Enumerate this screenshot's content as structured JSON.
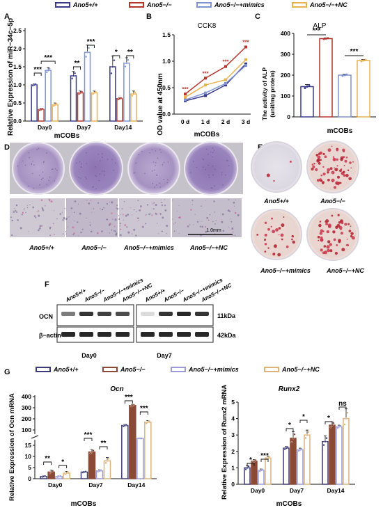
{
  "colors": {
    "wt": "#3a3a8c",
    "ko": "#b5352b",
    "mimics": "#7f93d0",
    "nc": "#e8b24f",
    "g_wt": "#3d3a7a",
    "g_ko": "#8a4a35",
    "g_mimics": "#9a9ad6",
    "g_nc": "#ddb37a"
  },
  "legend_top": [
    "Ano5+/+",
    "Ano5−/−",
    "Ano5−/−+mimics",
    "Ano5−/−+NC"
  ],
  "legend_g": [
    "Ano5+/+",
    "Ano5−/−",
    "Ano5−/−+mimics",
    "Ano5−/−+NC"
  ],
  "panels": {
    "A": {
      "letter": "A",
      "ylabel": "Relative Expression of miR−34c−5p",
      "xlabel": "mCOBs",
      "categories": [
        "Day0",
        "Day7",
        "Day14"
      ],
      "yticks": [
        "0.0",
        "0.5",
        "1.0",
        "1.5",
        "2.0",
        "2.5"
      ],
      "sig": [
        "***",
        "***",
        "**",
        "***",
        "*",
        "**"
      ]
    },
    "B": {
      "letter": "B",
      "title": "CCK8",
      "ylabel": "OD value at 450nm",
      "xlabel": "mCOBs",
      "xticks": [
        "0 d",
        "1 d",
        "2 d",
        "3 d"
      ],
      "yticks": [
        "0.0",
        "0.5",
        "1.0",
        "1.5"
      ],
      "sig": [
        "***",
        "***",
        "***",
        "***"
      ]
    },
    "C": {
      "letter": "C",
      "title": "ALP",
      "ylabel": "The activity of ALP",
      "ylabel2": "(unit/mg protein)",
      "xlabel": "mCOBs",
      "yticks": [
        "0",
        "100",
        "200",
        "300",
        "400"
      ],
      "sig": [
        "***",
        "***"
      ]
    },
    "D": {
      "letter": "D",
      "labels": [
        "Ano5+/+",
        "Ano5−/−",
        "Ano5−/−+mimics",
        "Ano5−/−+NC"
      ],
      "scale": "1.0mm"
    },
    "E": {
      "letter": "E",
      "labels": [
        "Ano5+/+",
        "Ano5−/−",
        "Ano5−/−+mimics",
        "Ano5−/−+NC"
      ]
    },
    "F": {
      "letter": "F",
      "lanes": [
        "Ano5+/+",
        "Ano5−/−",
        "Ano5−/−+mimics",
        "Ano5−/−+NC"
      ],
      "rows": [
        "OCN",
        "β−actin"
      ],
      "sizes": [
        "11kDa",
        "42kDa"
      ],
      "days": [
        "Day0",
        "Day7"
      ]
    },
    "G": {
      "letter": "G",
      "title": "Ocn",
      "ylabel": "Relative Expression of Ocn mRNA",
      "xlabel": "mCOBs",
      "categories": [
        "Day0",
        "Day7",
        "Day14"
      ],
      "yticks_low": [
        "0",
        "5",
        "10",
        "15"
      ],
      "yticks_high": [
        "100",
        "200",
        "300",
        "400"
      ],
      "sig": [
        "**",
        "*",
        "***",
        "**",
        "***",
        "***"
      ]
    },
    "H": {
      "title": "Runx2",
      "ylabel": "Relative Expression of Runx2 mRNA",
      "xlabel": "mCOBs",
      "categories": [
        "Day0",
        "Day7",
        "Day14"
      ],
      "yticks": [
        "0",
        "1",
        "2",
        "3",
        "4",
        "5"
      ],
      "sig": [
        "*",
        "***",
        "*",
        "*",
        "*",
        "ns"
      ]
    }
  },
  "chart_data": [
    {
      "type": "bar",
      "panel": "A",
      "categories": [
        "Day0",
        "Day7",
        "Day14"
      ],
      "series": [
        {
          "name": "Ano5+/+",
          "values": [
            1.0,
            1.25,
            1.5
          ]
        },
        {
          "name": "Ano5−/−",
          "values": [
            0.32,
            0.78,
            0.62
          ]
        },
        {
          "name": "Ano5−/−+mimics",
          "values": [
            1.4,
            1.9,
            1.6
          ]
        },
        {
          "name": "Ano5−/−+NC",
          "values": [
            0.45,
            0.78,
            0.75
          ]
        }
      ],
      "errors": [
        [
          0.03,
          0.12,
          0.3
        ],
        [
          0.03,
          0.05,
          0.03
        ],
        [
          0.08,
          0.2,
          0.15
        ],
        [
          0.05,
          0.05,
          0.08
        ]
      ],
      "ylim": [
        0,
        2.5
      ]
    },
    {
      "type": "line",
      "panel": "B",
      "x": [
        "0 d",
        "1 d",
        "2 d",
        "3 d"
      ],
      "series": [
        {
          "name": "Ano5+/+",
          "values": [
            0.25,
            0.35,
            0.55,
            0.95
          ]
        },
        {
          "name": "Ano5−/−",
          "values": [
            0.38,
            0.68,
            0.9,
            1.27
          ]
        },
        {
          "name": "Ano5−/−+mimics",
          "values": [
            0.27,
            0.4,
            0.58,
            0.92
          ]
        },
        {
          "name": "Ano5−/−+NC",
          "values": [
            0.32,
            0.55,
            0.65,
            1.03
          ]
        }
      ],
      "ylim": [
        0,
        1.5
      ]
    },
    {
      "type": "bar",
      "panel": "C",
      "categories": [
        "Ano5+/+",
        "Ano5−/−",
        "Ano5−/−+mimics",
        "Ano5−/−+NC"
      ],
      "values": [
        145,
        375,
        200,
        270
      ],
      "errors": [
        10,
        3,
        5,
        5
      ],
      "ylim": [
        0,
        400
      ]
    },
    {
      "type": "bar",
      "panel": "G",
      "categories": [
        "Day0",
        "Day7",
        "Day14"
      ],
      "series": [
        {
          "name": "Ano5+/+",
          "values": [
            1.0,
            3.0,
            140
          ]
        },
        {
          "name": "Ano5−/−",
          "values": [
            3.0,
            12.0,
            320
          ]
        },
        {
          "name": "Ano5−/−+mimics",
          "values": [
            1.0,
            3.5,
            20
          ]
        },
        {
          "name": "Ano5−/−+NC",
          "values": [
            2.5,
            8.0,
            170
          ]
        }
      ],
      "errors": [
        [
          0.3,
          0.3,
          10
        ],
        [
          0.8,
          1.0,
          10
        ],
        [
          0.3,
          0.5,
          5
        ],
        [
          0.8,
          1.5,
          15
        ]
      ],
      "ylim": [
        0,
        400
      ]
    },
    {
      "type": "bar",
      "panel": "H",
      "categories": [
        "Day0",
        "Day7",
        "Day14"
      ],
      "series": [
        {
          "name": "Ano5+/+",
          "values": [
            1.0,
            2.2,
            2.6
          ]
        },
        {
          "name": "Ano5−/−",
          "values": [
            1.4,
            2.8,
            3.6
          ]
        },
        {
          "name": "Ano5−/−+mimics",
          "values": [
            0.85,
            2.1,
            3.5
          ]
        },
        {
          "name": "Ano5−/−+NC",
          "values": [
            1.6,
            3.0,
            4.0
          ]
        }
      ],
      "errors": [
        [
          0.15,
          0.1,
          0.35
        ],
        [
          0.1,
          0.4,
          0.2
        ],
        [
          0.08,
          0.1,
          0.1
        ],
        [
          0.1,
          0.3,
          0.6
        ]
      ],
      "ylim": [
        0,
        5
      ]
    }
  ]
}
